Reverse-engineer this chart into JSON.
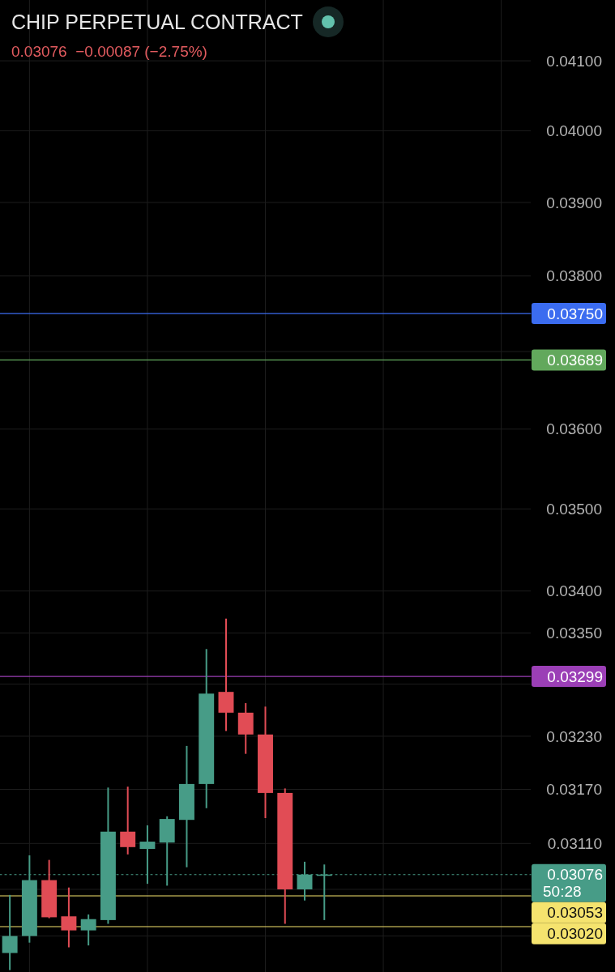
{
  "chart_data": {
    "type": "candlestick",
    "title": "CHIP PERPETUAL CONTRACT",
    "subtitle": "0.03076  −0.00087 (−2.75%)",
    "categories": [
      null,
      null,
      null,
      null,
      null,
      null,
      null,
      null,
      null,
      null,
      null,
      null,
      null,
      null,
      null,
      null,
      null,
      null,
      null,
      null,
      null,
      null,
      null,
      null,
      null,
      null,
      null
    ],
    "ohlc": [
      [
        0.02992,
        0.03054,
        0.02974,
        0.0301
      ],
      [
        0.0301,
        0.03097,
        0.03003,
        0.0307
      ],
      [
        0.0307,
        0.03092,
        0.03029,
        0.0303
      ],
      [
        0.03031,
        0.03062,
        0.02998,
        0.03016
      ],
      [
        0.03016,
        0.03033,
        0.03,
        0.03028
      ],
      [
        0.03027,
        0.03172,
        0.03023,
        0.03123
      ],
      [
        0.03123,
        0.03173,
        0.03098,
        0.03106
      ],
      [
        0.03104,
        0.0313,
        0.03066,
        0.03112
      ],
      [
        0.03111,
        0.0314,
        0.03064,
        0.03137
      ],
      [
        0.03136,
        0.03219,
        0.03084,
        0.03176
      ],
      [
        0.03176,
        0.03331,
        0.03149,
        0.03279
      ],
      [
        0.03281,
        0.03367,
        0.03236,
        0.03257
      ],
      [
        0.03257,
        0.03268,
        0.0321,
        0.03232
      ],
      [
        0.03232,
        0.03264,
        0.03138,
        0.03166
      ],
      [
        0.03166,
        0.03171,
        0.03023,
        0.0306
      ],
      [
        0.0306,
        0.0309,
        0.03048,
        0.03076
      ],
      [
        0.03076,
        0.03087,
        0.03027,
        0.03076
      ],
      null,
      null,
      null,
      null,
      null,
      null,
      null,
      null,
      null,
      null
    ],
    "colors": [
      "#479c87",
      "#479c87",
      "#e14c55",
      "#e14c55",
      "#479c87",
      "#479c87",
      "#e14c55",
      "#479c87",
      "#479c87",
      "#479c87",
      "#479c87",
      "#e14c55",
      "#e14c55",
      "#e14c55",
      "#e14c55",
      "#479c87",
      "#479c87",
      null,
      null,
      null,
      null,
      null,
      null,
      null,
      null,
      null,
      null
    ],
    "log": true,
    "ylim": [
      0.02972,
      0.04189
    ],
    "yticks": [
      {
        "value": 0.041,
        "label": "0.04100"
      },
      {
        "value": 0.04,
        "label": "0.04000"
      },
      {
        "value": 0.039,
        "label": "0.03900"
      },
      {
        "value": 0.038,
        "label": "0.03800"
      },
      {
        "value": 0.037,
        "label": null
      },
      {
        "value": 0.036,
        "label": "0.03600"
      },
      {
        "value": 0.035,
        "label": "0.03500"
      },
      {
        "value": 0.034,
        "label": "0.03400"
      },
      {
        "value": 0.0335,
        "label": "0.03350"
      },
      {
        "value": 0.0329,
        "label": null
      },
      {
        "value": 0.0323,
        "label": "0.03230"
      },
      {
        "value": 0.0317,
        "label": "0.03170"
      },
      {
        "value": 0.0311,
        "label": "0.03110"
      },
      {
        "value": 0.0306,
        "label": null
      },
      {
        "value": 0.0301,
        "label": null
      }
    ],
    "grid": true,
    "ref_lines": [
      {
        "axis": "y",
        "value": 0.0375,
        "label": "0.03750",
        "color": "#3b6cf0"
      },
      {
        "axis": "y",
        "value": 0.03689,
        "label": "0.03689",
        "color": "#62a85c"
      },
      {
        "axis": "y",
        "value": 0.03299,
        "label": "0.03299",
        "color": "#9b3fb6"
      },
      {
        "axis": "y",
        "value": 0.03076,
        "label": "0.03076",
        "color": "#479c87",
        "line_style": "dotted"
      },
      {
        "axis": "y",
        "value": 0.03053,
        "label": "0.03053",
        "color": "#f5e36e"
      },
      {
        "axis": "y",
        "value": 0.0302,
        "label": "0.03020",
        "color": "#f5e36e"
      }
    ],
    "annotations": [
      "50:28"
    ]
  }
}
